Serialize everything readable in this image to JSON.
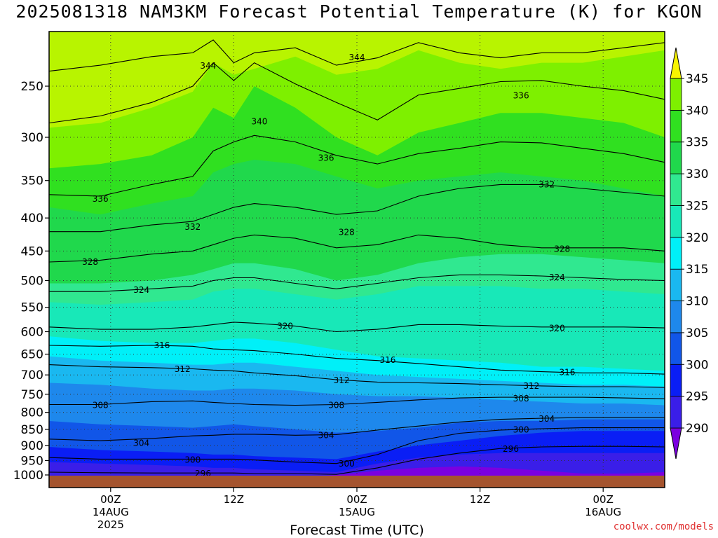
{
  "title": "2025081318 NAM3KM Forecast Potential Temperature (K) for KGON",
  "credit": "coolwx.com/models",
  "colors": {
    "ground": "#a5542e",
    "bands": [
      "#7b00e0",
      "#3a1ee8",
      "#0a1ef5",
      "#1156e8",
      "#1e88ec",
      "#1ab8f0",
      "#00f0f8",
      "#18e8b8",
      "#30e890",
      "#20d84c",
      "#30e020",
      "#7ef000",
      "#b8f400",
      "#f8f400"
    ]
  },
  "chart_data": {
    "type": "heatmap",
    "title": "2025081318 NAM3KM Forecast Potential Temperature (K) for KGON",
    "xlabel": "Forecast Time (UTC)",
    "ylabel": "",
    "y_axis": "pressure (log scale, inverted)",
    "ylim": [
      1000,
      200
    ],
    "y_ticks": [
      250,
      300,
      350,
      400,
      450,
      500,
      550,
      600,
      650,
      700,
      750,
      800,
      850,
      900,
      950,
      1000
    ],
    "x_ticks": [
      {
        "label": "00Z",
        "sub1": "14AUG",
        "sub2": "2025",
        "hour": 6
      },
      {
        "label": "12Z",
        "sub1": "",
        "sub2": "",
        "hour": 18
      },
      {
        "label": "00Z",
        "sub1": "15AUG",
        "sub2": "",
        "hour": 30
      },
      {
        "label": "12Z",
        "sub1": "",
        "sub2": "",
        "hour": 42
      },
      {
        "label": "00Z",
        "sub1": "16AUG",
        "sub2": "",
        "hour": 54
      }
    ],
    "xlim": [
      0,
      60
    ],
    "grid": true,
    "colorbar": {
      "ticks": [
        290,
        295,
        300,
        305,
        310,
        315,
        320,
        325,
        330,
        335,
        340,
        345
      ],
      "range": [
        285,
        350
      ]
    },
    "contour_interval": 4,
    "contour_labels": [
      {
        "value": "344",
        "hour": 15.5,
        "p": 232
      },
      {
        "value": "344",
        "hour": 30,
        "p": 225
      },
      {
        "value": "340",
        "hour": 20.5,
        "p": 283
      },
      {
        "value": "336",
        "hour": 46,
        "p": 258
      },
      {
        "value": "336",
        "hour": 27,
        "p": 322
      },
      {
        "value": "336",
        "hour": 5,
        "p": 373
      },
      {
        "value": "332",
        "hour": 48.5,
        "p": 354
      },
      {
        "value": "332",
        "hour": 14,
        "p": 412
      },
      {
        "value": "328",
        "hour": 29,
        "p": 420
      },
      {
        "value": "328",
        "hour": 50,
        "p": 446
      },
      {
        "value": "328",
        "hour": 4,
        "p": 467
      },
      {
        "value": "324",
        "hour": 49.5,
        "p": 493
      },
      {
        "value": "324",
        "hour": 9,
        "p": 516
      },
      {
        "value": "320",
        "hour": 23,
        "p": 587
      },
      {
        "value": "320",
        "hour": 49.5,
        "p": 591
      },
      {
        "value": "316",
        "hour": 11,
        "p": 628
      },
      {
        "value": "316",
        "hour": 33,
        "p": 662
      },
      {
        "value": "316",
        "hour": 50.5,
        "p": 692
      },
      {
        "value": "312",
        "hour": 13,
        "p": 684
      },
      {
        "value": "312",
        "hour": 28.5,
        "p": 712
      },
      {
        "value": "312",
        "hour": 47,
        "p": 726
      },
      {
        "value": "308",
        "hour": 5,
        "p": 778
      },
      {
        "value": "308",
        "hour": 28,
        "p": 778
      },
      {
        "value": "308",
        "hour": 46,
        "p": 760
      },
      {
        "value": "304",
        "hour": 48.5,
        "p": 817
      },
      {
        "value": "304",
        "hour": 27,
        "p": 866
      },
      {
        "value": "304",
        "hour": 9,
        "p": 890
      },
      {
        "value": "300",
        "hour": 46,
        "p": 849
      },
      {
        "value": "300",
        "hour": 14,
        "p": 945
      },
      {
        "value": "300",
        "hour": 29,
        "p": 959
      },
      {
        "value": "296",
        "hour": 45,
        "p": 909
      },
      {
        "value": "296",
        "hour": 15,
        "p": 993
      }
    ],
    "levels": [
      {
        "value": 345,
        "hour": [
          0,
          5,
          10,
          14,
          16,
          18,
          20,
          24,
          28,
          32,
          36,
          40,
          44,
          48,
          52,
          56,
          60
        ],
        "p": [
          290,
          285,
          270,
          255,
          230,
          240,
          235,
          225,
          240,
          235,
          220,
          230,
          235,
          230,
          230,
          225,
          220
        ]
      },
      {
        "value": 340,
        "hour": [
          0,
          5,
          10,
          14,
          16,
          18,
          20,
          24,
          28,
          32,
          36,
          40,
          44,
          48,
          52,
          56,
          60
        ],
        "p": [
          335,
          330,
          320,
          300,
          270,
          280,
          250,
          270,
          300,
          320,
          295,
          285,
          275,
          275,
          280,
          285,
          300
        ]
      },
      {
        "value": 335,
        "hour": [
          0,
          5,
          10,
          14,
          16,
          18,
          20,
          24,
          28,
          32,
          36,
          40,
          44,
          48,
          52,
          56,
          60
        ],
        "p": [
          385,
          395,
          380,
          370,
          340,
          330,
          325,
          330,
          345,
          360,
          350,
          345,
          340,
          345,
          350,
          360,
          370
        ]
      },
      {
        "value": 330,
        "hour": [
          0,
          5,
          10,
          14,
          16,
          18,
          20,
          24,
          28,
          32,
          36,
          40,
          44,
          48,
          52,
          56,
          60
        ],
        "p": [
          505,
          505,
          500,
          490,
          480,
          470,
          470,
          480,
          500,
          490,
          470,
          460,
          455,
          455,
          460,
          465,
          470
        ]
      },
      {
        "value": 325,
        "hour": [
          0,
          5,
          10,
          14,
          16,
          18,
          20,
          24,
          28,
          32,
          36,
          40,
          44,
          48,
          52,
          56,
          60
        ],
        "p": [
          540,
          545,
          540,
          535,
          520,
          515,
          515,
          525,
          535,
          525,
          510,
          510,
          510,
          515,
          515,
          520,
          525
        ]
      },
      {
        "value": 320,
        "hour": [
          0,
          5,
          10,
          14,
          16,
          18,
          20,
          24,
          28,
          32,
          36,
          40,
          44,
          48,
          52,
          56,
          60
        ],
        "p": [
          610,
          620,
          625,
          625,
          620,
          615,
          615,
          625,
          640,
          655,
          660,
          665,
          670,
          680,
          680,
          685,
          690
        ]
      },
      {
        "value": 315,
        "hour": [
          0,
          5,
          10,
          14,
          16,
          18,
          20,
          24,
          28,
          32,
          36,
          40,
          44,
          48,
          52,
          56,
          60
        ],
        "p": [
          655,
          665,
          670,
          675,
          675,
          670,
          670,
          680,
          690,
          700,
          705,
          710,
          715,
          720,
          725,
          725,
          730
        ]
      },
      {
        "value": 310,
        "hour": [
          0,
          5,
          10,
          14,
          16,
          18,
          20,
          24,
          28,
          32,
          36,
          40,
          44,
          48,
          52,
          56,
          60
        ],
        "p": [
          720,
          725,
          735,
          740,
          740,
          735,
          735,
          740,
          750,
          755,
          755,
          760,
          765,
          770,
          775,
          775,
          780
        ]
      },
      {
        "value": 305,
        "hour": [
          0,
          5,
          10,
          14,
          16,
          18,
          20,
          24,
          28,
          32,
          36,
          40,
          44,
          48,
          52,
          56,
          60
        ],
        "p": [
          825,
          835,
          840,
          845,
          840,
          835,
          840,
          850,
          860,
          855,
          845,
          830,
          825,
          825,
          820,
          820,
          820
        ]
      },
      {
        "value": 300,
        "hour": [
          0,
          5,
          10,
          14,
          16,
          18,
          20,
          24,
          28,
          32,
          36,
          40,
          44,
          48,
          52,
          56,
          60
        ],
        "p": [
          905,
          915,
          920,
          925,
          930,
          930,
          935,
          940,
          945,
          920,
          900,
          885,
          870,
          860,
          855,
          855,
          855
        ]
      },
      {
        "value": 295,
        "hour": [
          0,
          5,
          10,
          14,
          16,
          18,
          20,
          24,
          28,
          32,
          36,
          40,
          44,
          48,
          52,
          56,
          60
        ],
        "p": [
          955,
          960,
          965,
          970,
          975,
          975,
          980,
          985,
          990,
          960,
          940,
          930,
          925,
          925,
          925,
          925,
          925
        ]
      },
      {
        "value": 290,
        "hour": [
          0,
          5,
          10,
          14,
          16,
          18,
          20,
          24,
          28,
          32,
          36,
          40,
          44,
          48,
          52,
          56,
          60
        ],
        "p": [
          1010,
          1010,
          1010,
          1010,
          1010,
          1010,
          1010,
          1010,
          1000,
          985,
          975,
          970,
          975,
          985,
          995,
          995,
          990
        ]
      }
    ],
    "contours": [
      {
        "value": 344,
        "hour": [
          0,
          5,
          10,
          14,
          16,
          18,
          20,
          24,
          28,
          32,
          36,
          40,
          44,
          48,
          52,
          56,
          60
        ],
        "p": [
          237,
          232,
          225,
          222,
          212,
          230,
          222,
          218,
          232,
          226,
          214,
          222,
          226,
          222,
          222,
          218,
          214
        ]
      },
      {
        "value": 340,
        "hour": [
          0,
          5,
          10,
          14,
          16,
          18,
          20,
          24,
          28,
          32,
          36,
          40,
          44,
          48,
          52,
          56,
          60
        ],
        "p": [
          285,
          278,
          265,
          250,
          230,
          245,
          230,
          248,
          265,
          282,
          258,
          252,
          246,
          245,
          250,
          254,
          262
        ]
      },
      {
        "value": 336,
        "hour": [
          0,
          5,
          10,
          14,
          16,
          18,
          20,
          24,
          28,
          32,
          36,
          40,
          44,
          48,
          52,
          56,
          60
        ],
        "p": [
          368,
          370,
          355,
          345,
          315,
          305,
          298,
          305,
          320,
          330,
          318,
          312,
          305,
          306,
          312,
          318,
          328
        ]
      },
      {
        "value": 332,
        "hour": [
          0,
          5,
          10,
          14,
          16,
          18,
          20,
          24,
          28,
          32,
          36,
          40,
          44,
          48,
          52,
          56,
          60
        ],
        "p": [
          420,
          420,
          410,
          405,
          395,
          385,
          380,
          385,
          395,
          390,
          370,
          360,
          355,
          355,
          360,
          365,
          370
        ]
      },
      {
        "value": 328,
        "hour": [
          0,
          5,
          10,
          14,
          16,
          18,
          20,
          24,
          28,
          32,
          36,
          40,
          44,
          48,
          52,
          56,
          60
        ],
        "p": [
          468,
          465,
          455,
          450,
          440,
          430,
          425,
          430,
          445,
          440,
          425,
          430,
          440,
          445,
          445,
          445,
          450
        ]
      },
      {
        "value": 324,
        "hour": [
          0,
          5,
          10,
          14,
          16,
          18,
          20,
          24,
          28,
          32,
          36,
          40,
          44,
          48,
          52,
          56,
          60
        ],
        "p": [
          520,
          520,
          515,
          510,
          500,
          495,
          495,
          505,
          515,
          505,
          495,
          490,
          490,
          492,
          495,
          498,
          500
        ]
      },
      {
        "value": 320,
        "hour": [
          0,
          5,
          10,
          14,
          16,
          18,
          20,
          24,
          28,
          32,
          36,
          40,
          44,
          48,
          52,
          56,
          60
        ],
        "p": [
          590,
          595,
          595,
          590,
          585,
          580,
          582,
          588,
          600,
          595,
          585,
          585,
          588,
          590,
          590,
          590,
          592
        ]
      },
      {
        "value": 316,
        "hour": [
          0,
          5,
          10,
          14,
          16,
          18,
          20,
          24,
          28,
          32,
          36,
          40,
          44,
          48,
          52,
          56,
          60
        ],
        "p": [
          630,
          632,
          630,
          632,
          638,
          640,
          642,
          650,
          660,
          665,
          672,
          680,
          688,
          692,
          695,
          695,
          698
        ]
      },
      {
        "value": 312,
        "hour": [
          0,
          5,
          10,
          14,
          16,
          18,
          20,
          24,
          28,
          32,
          36,
          40,
          44,
          48,
          52,
          56,
          60
        ],
        "p": [
          675,
          680,
          682,
          685,
          688,
          690,
          695,
          702,
          712,
          718,
          720,
          722,
          725,
          728,
          730,
          730,
          732
        ]
      },
      {
        "value": 308,
        "hour": [
          0,
          5,
          10,
          14,
          16,
          18,
          20,
          24,
          28,
          32,
          36,
          40,
          44,
          48,
          52,
          56,
          60
        ],
        "p": [
          778,
          778,
          770,
          768,
          772,
          775,
          778,
          780,
          778,
          772,
          765,
          760,
          758,
          758,
          758,
          760,
          762
        ]
      },
      {
        "value": 304,
        "hour": [
          0,
          5,
          10,
          14,
          16,
          18,
          20,
          24,
          28,
          32,
          36,
          40,
          44,
          48,
          52,
          56,
          60
        ],
        "p": [
          880,
          885,
          878,
          870,
          868,
          865,
          865,
          868,
          866,
          852,
          840,
          828,
          820,
          817,
          815,
          815,
          815
        ]
      },
      {
        "value": 300,
        "hour": [
          0,
          5,
          10,
          14,
          16,
          18,
          20,
          24,
          28,
          32,
          36,
          40,
          44,
          48,
          52,
          56,
          60
        ],
        "p": [
          940,
          945,
          945,
          945,
          945,
          945,
          948,
          955,
          960,
          930,
          885,
          862,
          852,
          848,
          845,
          845,
          845
        ]
      },
      {
        "value": 296,
        "hour": [
          0,
          5,
          10,
          14,
          16,
          18,
          20,
          24,
          28,
          32,
          36,
          40,
          44,
          48,
          52,
          56,
          60
        ],
        "p": [
          990,
          992,
          993,
          993,
          993,
          993,
          995,
          995,
          998,
          975,
          945,
          925,
          910,
          905,
          903,
          903,
          905
        ]
      }
    ]
  }
}
